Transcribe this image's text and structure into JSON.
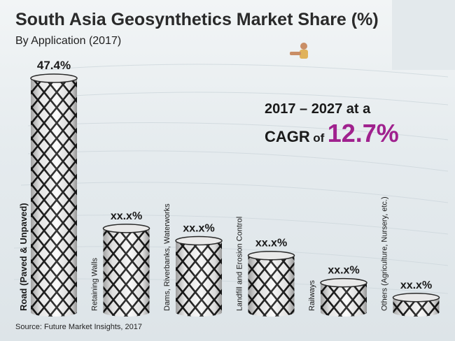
{
  "header": {
    "title": "South Asia Geosynthetics Market Share (%)",
    "subtitle": "By Application (2017)"
  },
  "cagr": {
    "line1": "2017 – 2027 at a",
    "word": "CAGR",
    "of": "of",
    "value": "12.7%",
    "value_color": "#a0218e"
  },
  "footer": {
    "source": "Source: Future Market Insights, 2017"
  },
  "chart_data": {
    "type": "bar",
    "categories": [
      "Road (Paved & Unpaved)",
      "Retaining Walls",
      "Dams, Riverbanks, Waterworks",
      "Landfill and Erosion Control",
      "Railways",
      "Others (Agriculture, Nursery, etc.)"
    ],
    "values": [
      47.4,
      17,
      14.5,
      11.5,
      6,
      3
    ],
    "data_labels": [
      "47.4%",
      "xx.x%",
      "xx.x%",
      "xx.x%",
      "xx.x%",
      "xx.x%"
    ],
    "title": "South Asia Geosynthetics Market Share (%)",
    "subtitle": "By Application (2017)",
    "ylim": [
      0,
      47.4
    ],
    "grid": false,
    "legend": "none",
    "bar_style": "chain-link mesh cylinders"
  }
}
